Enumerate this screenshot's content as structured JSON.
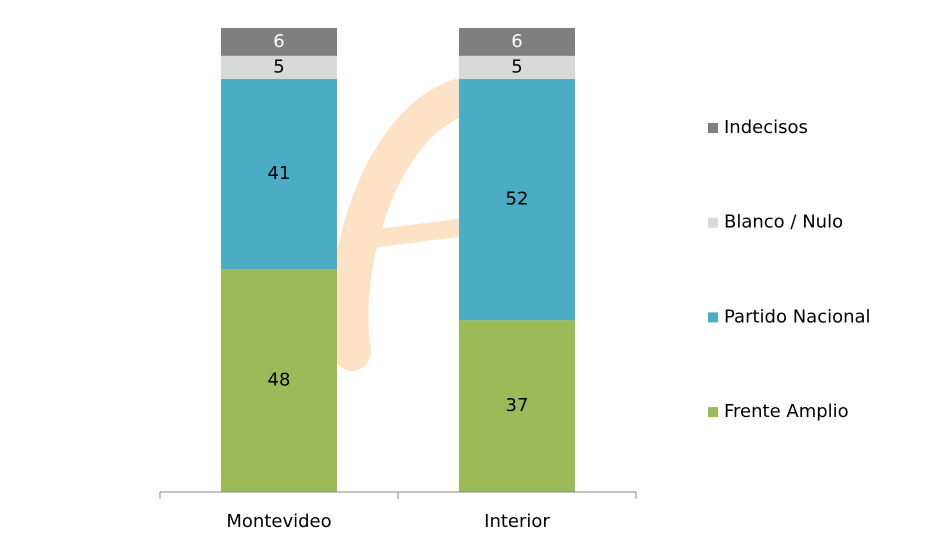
{
  "chart_data": {
    "type": "stacked_bar",
    "categories": [
      "Montevideo",
      "Interior"
    ],
    "series": [
      {
        "name": "Frente Amplio",
        "color": "#9bbb59",
        "values": [
          48,
          37
        ]
      },
      {
        "name": "Partido Nacional",
        "color": "#4bacc6",
        "values": [
          41,
          52
        ]
      },
      {
        "name": "Blanco / Nulo",
        "color": "#d9d9d9",
        "values": [
          5,
          5
        ]
      },
      {
        "name": "Indecisos",
        "color": "#7f7f7f",
        "values": [
          6,
          6
        ]
      }
    ],
    "ylim": [
      0,
      100
    ],
    "legend": "right"
  }
}
